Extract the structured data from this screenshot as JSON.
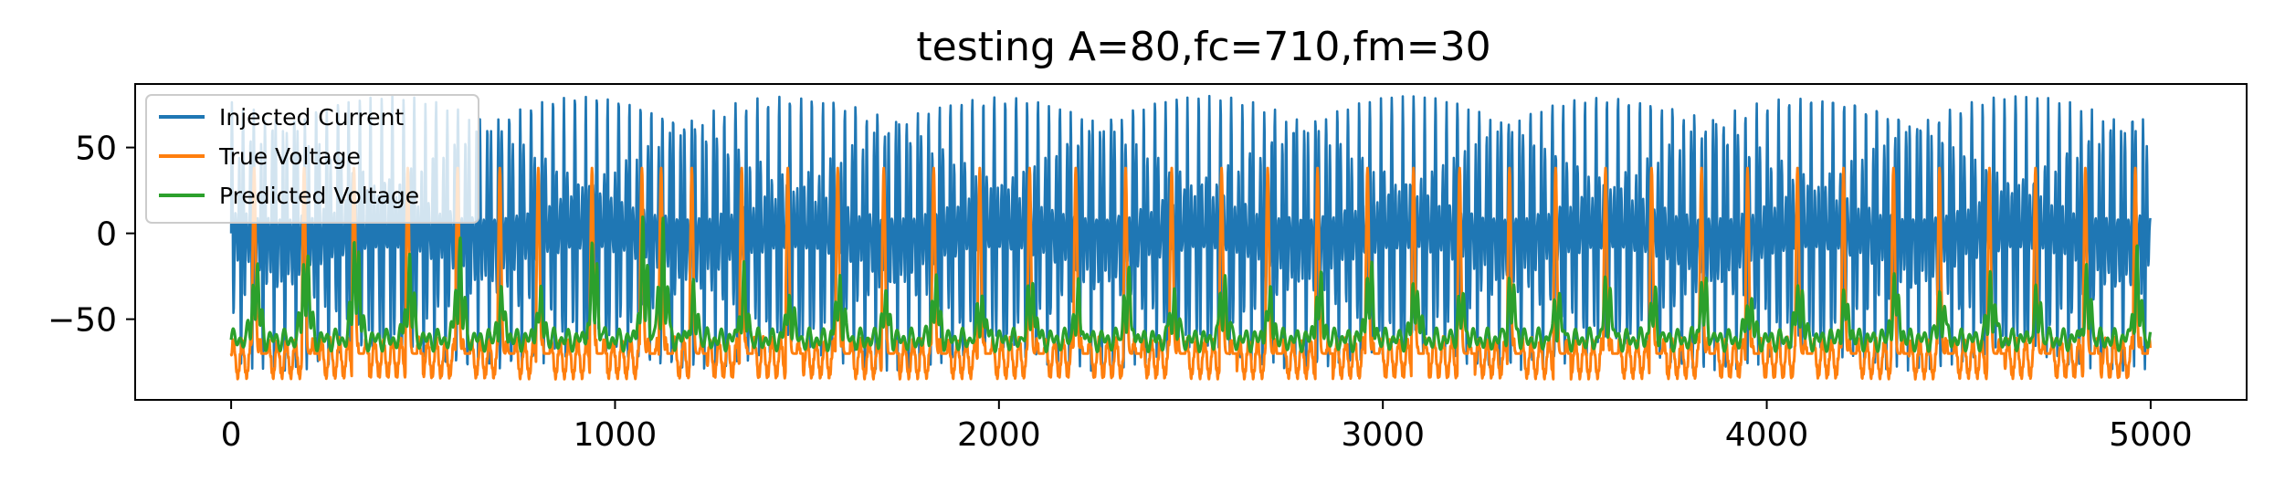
{
  "chart_data": {
    "type": "line",
    "title": "testing A=80,fc=710,fm=30",
    "xlabel": "",
    "ylabel": "",
    "xlim": [
      -250,
      5250
    ],
    "ylim": [
      -97,
      87
    ],
    "x_ticks": [
      0,
      1000,
      2000,
      3000,
      4000,
      5000
    ],
    "x_tick_labels": [
      "0",
      "1000",
      "2000",
      "3000",
      "4000",
      "5000"
    ],
    "y_ticks": [
      -50,
      0,
      50
    ],
    "y_tick_labels": [
      "−50",
      "0",
      "50"
    ],
    "grid": false,
    "legend_position": "top-left",
    "n_points": 5000,
    "spike_times": [
      60,
      190,
      320,
      460,
      590,
      700,
      800,
      940,
      1070,
      1120,
      1200,
      1330,
      1450,
      1580,
      1700,
      1830,
      1950,
      2080,
      2200,
      2330,
      2450,
      2580,
      2700,
      2830,
      2960,
      3080,
      3200,
      3330,
      3450,
      3580,
      3700,
      3830,
      3950,
      4080,
      4200,
      4330,
      4450,
      4580,
      4700,
      4830,
      4960
    ],
    "series": [
      {
        "name": "Injected Current",
        "color": "#1f77b4",
        "description_values": {
          "amplitude": 80,
          "carrier_frequency": 710,
          "modulation_frequency": 30,
          "range": [
            -80,
            80
          ]
        }
      },
      {
        "name": "True Voltage",
        "color": "#ff7f0e",
        "description_values": {
          "resting": -70,
          "trough": -88,
          "spike_peak": 38
        }
      },
      {
        "name": "Predicted Voltage",
        "color": "#2ca02c",
        "description_values": {
          "resting": -62,
          "peak_max": 15,
          "range": [
            -72,
            15
          ]
        }
      }
    ]
  }
}
